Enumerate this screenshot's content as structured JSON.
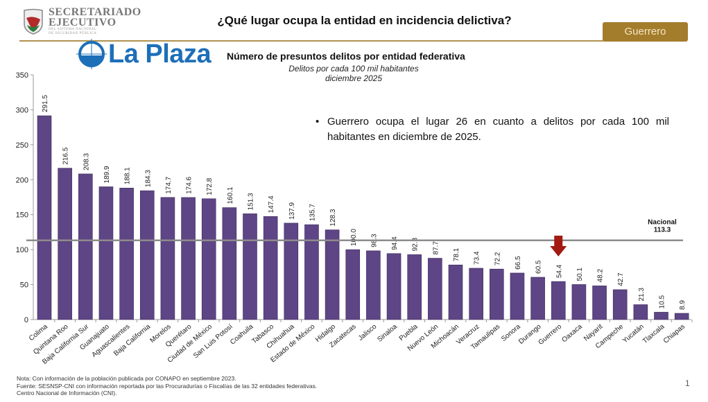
{
  "header": {
    "org_line1": "SECRETARIADO",
    "org_line2": "EJECUTIVO",
    "org_line3": "DEL SISTEMA NACIONAL",
    "org_line4": "DE SEGURIDAD PÚBLICA",
    "title": "¿Qué lugar ocupa la entidad en incidencia delictiva?",
    "state_button": "Guerrero",
    "watermark": "La Plaza"
  },
  "bullet": "Guerrero ocupa el lugar 26 en cuanto a delitos por cada 100 mil habitantes en diciembre de 2025.",
  "notes": [
    "Nota: Con información de la población publicada por CONAPO en septiembre 2023.",
    "Fuente: SESNSP-CNI con información reportada por las Procuradurías o Fiscalías de las 32 entidades federativas.",
    "Centro Nacional de Información (CNI)."
  ],
  "page_number": "1",
  "colors": {
    "bar": "#5e4585",
    "reference_line": "#8c8c8c",
    "arrow": "#a31a12",
    "accent": "#a37c2c"
  },
  "chart_data": {
    "type": "bar",
    "title": "Número de presuntos delitos por entidad federativa",
    "subtitle": "Delitos por cada 100 mil habitantes",
    "subtitle2": "diciembre 2025",
    "categories": [
      "Colima",
      "Quintana Roo",
      "Baja California Sur",
      "Guanajuato",
      "Aguascalientes",
      "Baja California",
      "Morelos",
      "Querétaro",
      "Ciudad de México",
      "San Luis Potosí",
      "Coahuila",
      "Tabasco",
      "Chihuahua",
      "Estado de México",
      "Hidalgo",
      "Zacatecas",
      "Jalisco",
      "Sinaloa",
      "Puebla",
      "Nuevo León",
      "Michoacán",
      "Veracruz",
      "Tamaulipas",
      "Sonora",
      "Durango",
      "Guerrero",
      "Oaxaca",
      "Nayarit",
      "Campeche",
      "Yucatán",
      "Tlaxcala",
      "Chiapas"
    ],
    "values": [
      291.5,
      216.5,
      208.3,
      189.9,
      188.1,
      184.3,
      174.7,
      174.6,
      172.8,
      160.1,
      151.3,
      147.4,
      137.9,
      135.7,
      128.3,
      100.0,
      98.3,
      94.4,
      92.8,
      87.7,
      78.1,
      73.4,
      72.2,
      66.5,
      60.5,
      54.4,
      50.1,
      48.2,
      42.7,
      21.3,
      10.5,
      8.9
    ],
    "value_labels": [
      "291.5",
      "216.5",
      "208.3",
      "189.9",
      "188.1",
      "184.3",
      "174.7",
      "174.6",
      "172.8",
      "160.1",
      "151.3",
      "147.4",
      "137.9",
      "135.7",
      "128.3",
      "100.0",
      "98.3",
      "94.4",
      "92.8",
      "87.7",
      "78.1",
      "73.4",
      "72.2",
      "66.5",
      "60.5",
      "54.4",
      "50.1",
      "48.2",
      "42.7",
      "21.3",
      "10.5",
      "8.9"
    ],
    "ylim": [
      0,
      350
    ],
    "yticks": [
      0,
      50,
      100,
      150,
      200,
      250,
      300,
      350
    ],
    "reference_line": {
      "label": "Nacional",
      "value": 113.3,
      "value_label": "113.3"
    },
    "highlight": "Guerrero",
    "grid": false
  }
}
